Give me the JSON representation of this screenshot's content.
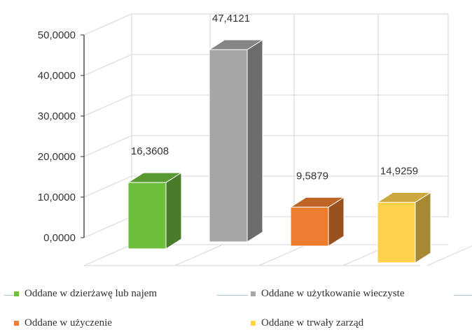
{
  "chart_data": {
    "type": "bar",
    "style": "3d-column",
    "ylim": [
      0,
      50
    ],
    "y_ticks": [
      "0,0000",
      "10,0000",
      "20,0000",
      "30,0000",
      "40,0000",
      "50,0000"
    ],
    "grid": true,
    "legend_position": "bottom",
    "series": [
      {
        "name": "Oddane w dzierżawę lub najem",
        "value": 16.3608,
        "label": "16,3608",
        "color": "#6fbf3f"
      },
      {
        "name": "Oddane w użytkowanie wieczyste",
        "value": 47.4121,
        "label": "47,4121",
        "color": "#a6a6a6"
      },
      {
        "name": "Oddane w użyczenie",
        "value": 9.5879,
        "label": "9,5879",
        "color": "#ed7d31"
      },
      {
        "name": "Oddane w trwały zarząd",
        "value": 14.9259,
        "label": "14,9259",
        "color": "#ffd24d"
      }
    ]
  }
}
